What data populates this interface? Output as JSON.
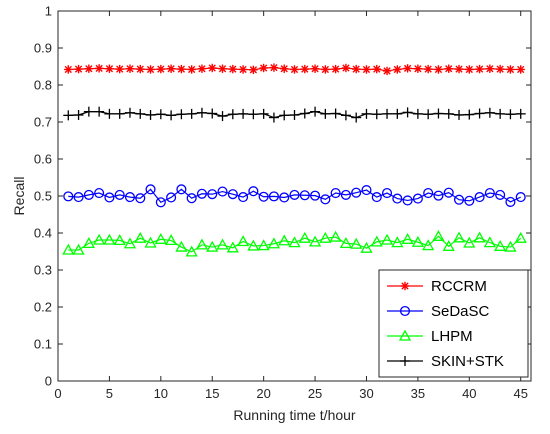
{
  "chart_data": {
    "type": "line",
    "title": "",
    "xlabel": "Running time t/hour",
    "ylabel": "Recall",
    "xlim": [
      0,
      46
    ],
    "ylim": [
      0,
      1
    ],
    "xticks": [
      0,
      5,
      10,
      15,
      20,
      25,
      30,
      35,
      40,
      45
    ],
    "yticks": [
      0,
      0.1,
      0.2,
      0.3,
      0.4,
      0.5,
      0.6,
      0.7,
      0.8,
      0.9,
      1
    ],
    "grid": false,
    "legend_position": "bottom-right",
    "x": [
      1,
      2,
      3,
      4,
      5,
      6,
      7,
      8,
      9,
      10,
      11,
      12,
      13,
      14,
      15,
      16,
      17,
      18,
      19,
      20,
      21,
      22,
      23,
      24,
      25,
      26,
      27,
      28,
      29,
      30,
      31,
      32,
      33,
      34,
      35,
      36,
      37,
      38,
      39,
      40,
      41,
      42,
      43,
      44,
      45
    ],
    "series": [
      {
        "name": "RCCRM",
        "color": "#ff0000",
        "marker": "asterisk",
        "values": [
          0.842,
          0.843,
          0.844,
          0.845,
          0.844,
          0.843,
          0.844,
          0.843,
          0.842,
          0.843,
          0.844,
          0.843,
          0.842,
          0.844,
          0.846,
          0.844,
          0.843,
          0.842,
          0.841,
          0.846,
          0.847,
          0.844,
          0.842,
          0.843,
          0.844,
          0.842,
          0.843,
          0.846,
          0.843,
          0.842,
          0.843,
          0.838,
          0.842,
          0.845,
          0.844,
          0.843,
          0.842,
          0.844,
          0.843,
          0.842,
          0.843,
          0.844,
          0.843,
          0.842,
          0.842
        ]
      },
      {
        "name": "SeDaSC",
        "color": "#0000ff",
        "marker": "circle",
        "values": [
          0.499,
          0.497,
          0.503,
          0.508,
          0.496,
          0.503,
          0.497,
          0.494,
          0.518,
          0.483,
          0.496,
          0.518,
          0.494,
          0.506,
          0.505,
          0.512,
          0.505,
          0.497,
          0.513,
          0.498,
          0.499,
          0.496,
          0.503,
          0.502,
          0.501,
          0.491,
          0.508,
          0.503,
          0.509,
          0.516,
          0.497,
          0.508,
          0.493,
          0.488,
          0.493,
          0.508,
          0.501,
          0.509,
          0.49,
          0.487,
          0.497,
          0.508,
          0.503,
          0.484,
          0.497
        ]
      },
      {
        "name": "LHPM",
        "color": "#00ff00",
        "marker": "triangle",
        "values": [
          0.354,
          0.354,
          0.372,
          0.381,
          0.381,
          0.38,
          0.371,
          0.386,
          0.373,
          0.383,
          0.38,
          0.362,
          0.349,
          0.368,
          0.362,
          0.368,
          0.36,
          0.377,
          0.365,
          0.366,
          0.371,
          0.379,
          0.374,
          0.386,
          0.376,
          0.386,
          0.389,
          0.372,
          0.37,
          0.359,
          0.376,
          0.381,
          0.374,
          0.383,
          0.375,
          0.366,
          0.391,
          0.364,
          0.387,
          0.373,
          0.387,
          0.374,
          0.364,
          0.362,
          0.386
        ]
      },
      {
        "name": "SKIN+STK",
        "color": "#000000",
        "marker": "plus",
        "values": [
          0.718,
          0.719,
          0.728,
          0.728,
          0.722,
          0.722,
          0.725,
          0.722,
          0.719,
          0.721,
          0.718,
          0.721,
          0.722,
          0.725,
          0.723,
          0.716,
          0.721,
          0.722,
          0.721,
          0.722,
          0.712,
          0.718,
          0.719,
          0.723,
          0.728,
          0.722,
          0.723,
          0.718,
          0.712,
          0.722,
          0.721,
          0.722,
          0.722,
          0.726,
          0.722,
          0.721,
          0.723,
          0.722,
          0.719,
          0.72,
          0.723,
          0.725,
          0.722,
          0.721,
          0.722
        ]
      }
    ]
  }
}
